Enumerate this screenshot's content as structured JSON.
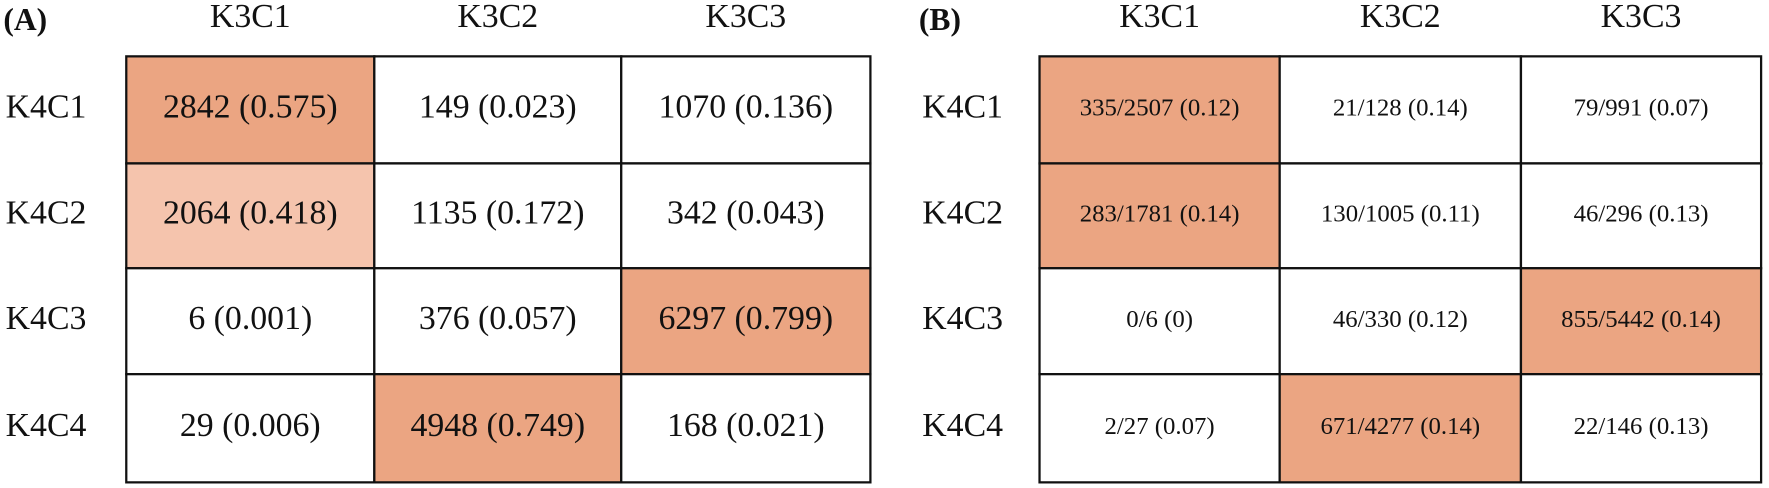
{
  "panels": [
    {
      "label": "(A)",
      "columns": [
        "K3C1",
        "K3C2",
        "K3C3"
      ],
      "font_size": 30,
      "rows": [
        {
          "label": "K4C1",
          "cells": [
            "2842 (0.575)",
            "149 (0.023)",
            "1070 (0.136)"
          ],
          "fills": [
            "#eba582",
            "#ffffff",
            "#ffffff"
          ]
        },
        {
          "label": "K4C2",
          "cells": [
            "2064 (0.418)",
            "1135 (0.172)",
            "342 (0.043)"
          ],
          "fills": [
            "#f5c4ad",
            "#ffffff",
            "#ffffff"
          ]
        },
        {
          "label": "K4C3",
          "cells": [
            "6 (0.001)",
            "376 (0.057)",
            "6297 (0.799)"
          ],
          "fills": [
            "#ffffff",
            "#ffffff",
            "#eba582"
          ]
        },
        {
          "label": "K4C4",
          "cells": [
            "29 (0.006)",
            "4948 (0.749)",
            "168 (0.021)"
          ],
          "fills": [
            "#ffffff",
            "#eba582",
            "#ffffff"
          ]
        }
      ]
    },
    {
      "label": "(B)",
      "columns": [
        "K3C1",
        "K3C2",
        "K3C3"
      ],
      "font_size": 22,
      "rows": [
        {
          "label": "K4C1",
          "cells": [
            "335/2507 (0.12)",
            "21/128 (0.14)",
            "79/991 (0.07)"
          ],
          "fills": [
            "#eba582",
            "#ffffff",
            "#ffffff"
          ]
        },
        {
          "label": "K4C2",
          "cells": [
            "283/1781 (0.14)",
            "130/1005 (0.11)",
            "46/296 (0.13)"
          ],
          "fills": [
            "#eba582",
            "#ffffff",
            "#ffffff"
          ]
        },
        {
          "label": "K4C3",
          "cells": [
            "0/6 (0)",
            "46/330 (0.12)",
            "855/5442 (0.14)"
          ],
          "fills": [
            "#ffffff",
            "#ffffff",
            "#eba582"
          ]
        },
        {
          "label": "K4C4",
          "cells": [
            "2/27 (0.07)",
            "671/4277 (0.14)",
            "22/146 (0.13)"
          ],
          "fills": [
            "#ffffff",
            "#eba582",
            "#ffffff"
          ]
        }
      ]
    }
  ]
}
